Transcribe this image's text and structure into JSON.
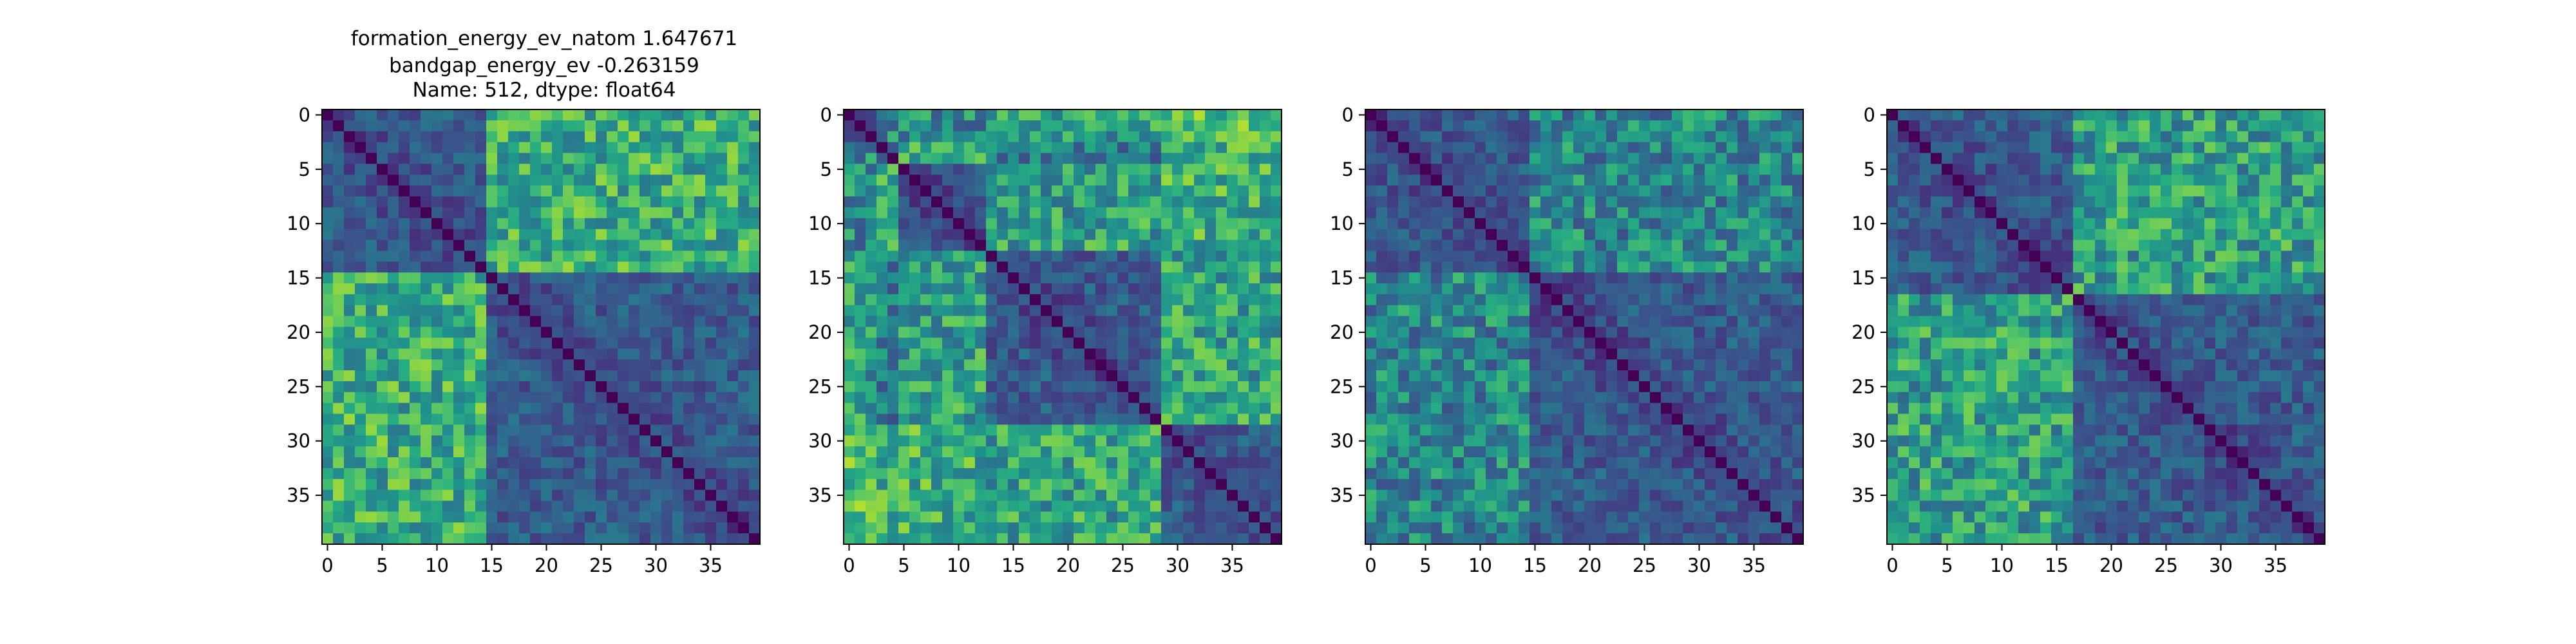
{
  "figure": {
    "title_lines": [
      "formation_energy_ev_natom    1.647671",
      "bandgap_energy_ev           -0.263159",
      "Name: 512, dtype: float64"
    ]
  },
  "chart_data": [
    {
      "type": "heatmap",
      "colormap": "viridis",
      "size": 40,
      "blocks": [
        [
          0,
          14
        ],
        [
          15,
          39
        ]
      ],
      "x_ticks": [
        0,
        5,
        10,
        15,
        20,
        25,
        30,
        35
      ],
      "y_ticks": [
        0,
        5,
        10,
        15,
        20,
        25,
        30,
        35
      ],
      "xlim": [
        -0.5,
        39.5
      ],
      "ylim": [
        39.5,
        -0.5
      ],
      "grid": false
    },
    {
      "type": "heatmap",
      "colormap": "viridis",
      "size": 40,
      "blocks": [
        [
          0,
          2
        ],
        [
          3,
          4
        ],
        [
          5,
          12
        ],
        [
          13,
          28
        ],
        [
          29,
          39
        ]
      ],
      "x_ticks": [
        0,
        5,
        10,
        15,
        20,
        25,
        30,
        35
      ],
      "y_ticks": [
        0,
        5,
        10,
        15,
        20,
        25,
        30,
        35
      ],
      "xlim": [
        -0.5,
        39.5
      ],
      "ylim": [
        39.5,
        -0.5
      ],
      "grid": false
    },
    {
      "type": "heatmap",
      "colormap": "viridis",
      "size": 40,
      "blocks": [
        [
          0,
          14
        ],
        [
          15,
          39
        ]
      ],
      "x_ticks": [
        0,
        5,
        10,
        15,
        20,
        25,
        30,
        35
      ],
      "y_ticks": [
        0,
        5,
        10,
        15,
        20,
        25,
        30,
        35
      ],
      "xlim": [
        -0.5,
        39.5
      ],
      "ylim": [
        39.5,
        -0.5
      ],
      "grid": false
    },
    {
      "type": "heatmap",
      "colormap": "viridis",
      "size": 40,
      "blocks": [
        [
          0,
          16
        ],
        [
          17,
          39
        ]
      ],
      "x_ticks": [
        0,
        5,
        10,
        15,
        20,
        25,
        30,
        35
      ],
      "y_ticks": [
        0,
        5,
        10,
        15,
        20,
        25,
        30,
        35
      ],
      "xlim": [
        -0.5,
        39.5
      ],
      "ylim": [
        39.5,
        -0.5
      ],
      "grid": false
    }
  ]
}
